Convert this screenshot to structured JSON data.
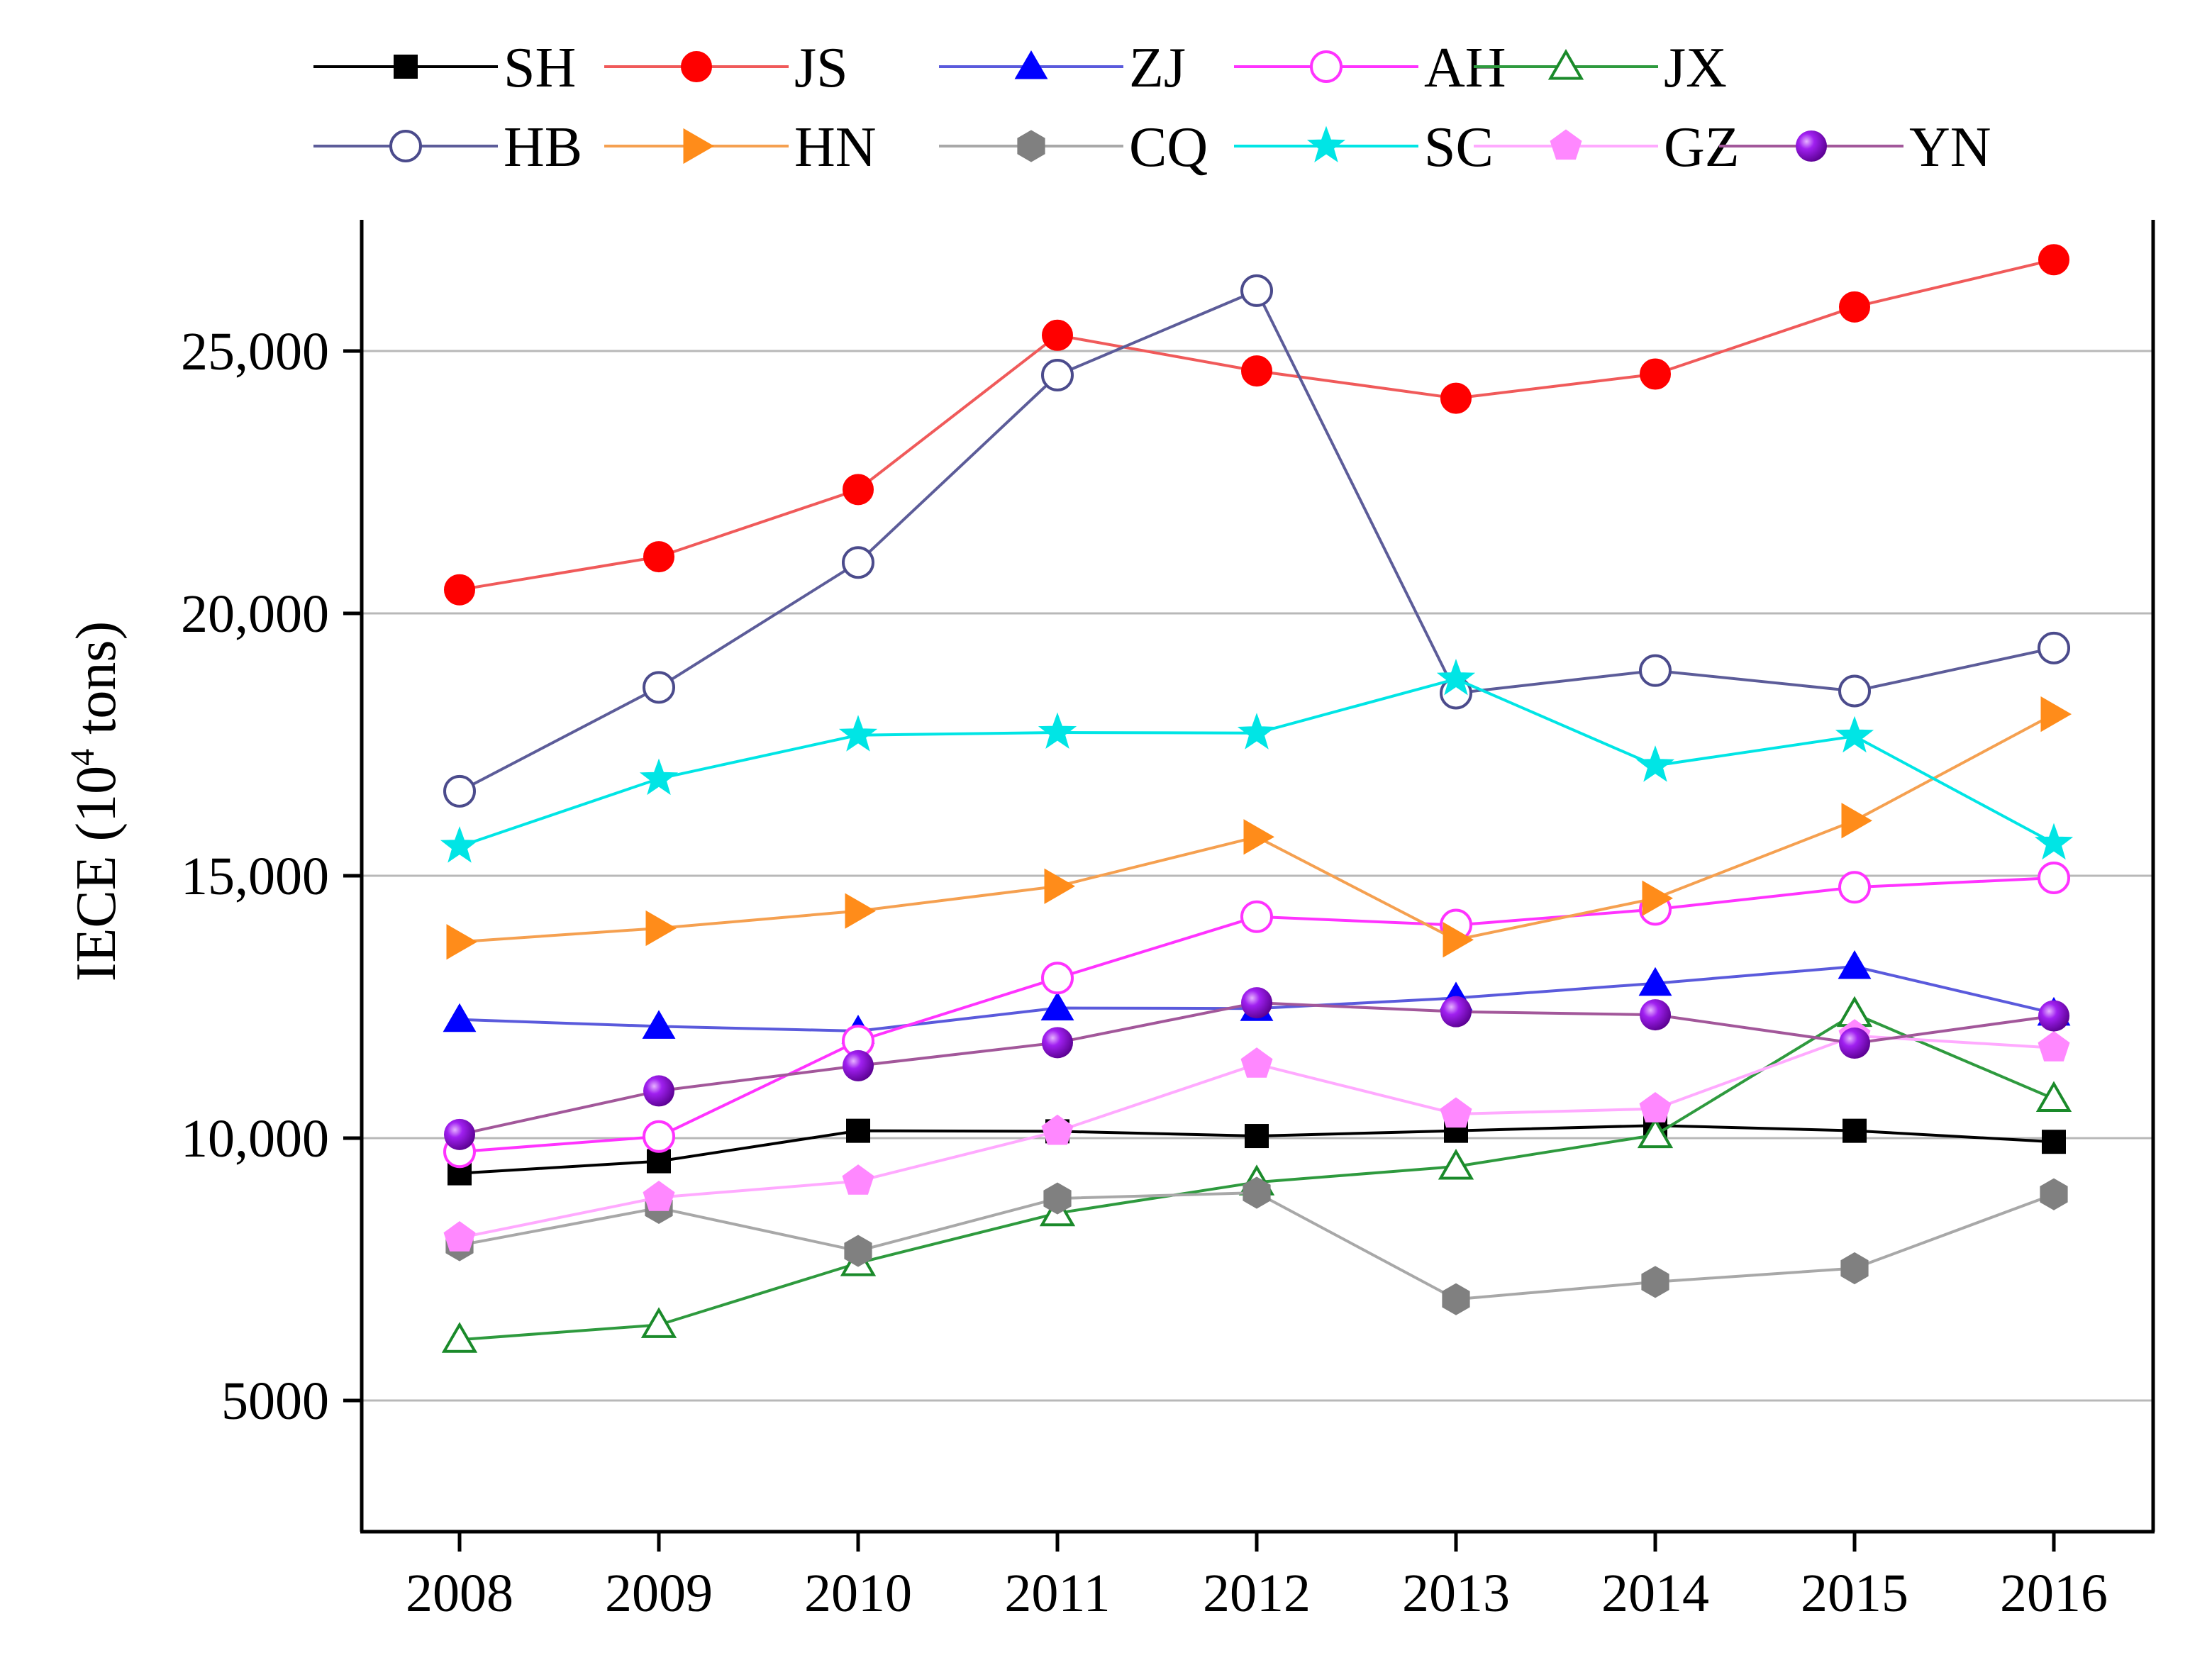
{
  "chart_data": {
    "type": "line",
    "title": "",
    "xlabel": "",
    "ylabel_parts": {
      "pre": "IECE (10",
      "sup": "4",
      "post": " tons)"
    },
    "x": [
      "2008",
      "2009",
      "2010",
      "2011",
      "2012",
      "2013",
      "2014",
      "2015",
      "2016"
    ],
    "ylim": [
      2500,
      27500
    ],
    "yticks": [
      5000,
      10000,
      15000,
      20000,
      25000
    ],
    "ytick_labels": [
      "5000",
      "10,000",
      "15,000",
      "20,000",
      "25,000"
    ],
    "grid": true,
    "legend_position": "top",
    "series": [
      {
        "name": "SH",
        "color": "#000000",
        "marker": "square",
        "filled": true,
        "values": [
          9330,
          9560,
          10140,
          10130,
          10040,
          10140,
          10240,
          10140,
          9930
        ]
      },
      {
        "name": "JS",
        "color": "#ff0000",
        "line_color": "#f05a5a",
        "marker": "circle",
        "filled": true,
        "values": [
          20450,
          21080,
          22360,
          25300,
          24620,
          24100,
          24560,
          25840,
          26740
        ]
      },
      {
        "name": "ZJ",
        "color": "#0000ff",
        "line_color": "#5a5adc",
        "marker": "triangle-up",
        "filled": true,
        "values": [
          12260,
          12130,
          12040,
          12480,
          12470,
          12670,
          12950,
          13270,
          12380
        ]
      },
      {
        "name": "AH",
        "color": "#ff33ff",
        "marker": "circle",
        "filled": false,
        "values": [
          9740,
          10030,
          11850,
          13050,
          14220,
          14060,
          14360,
          14780,
          14960
        ]
      },
      {
        "name": "JX",
        "color": "#1a8a2a",
        "line_color": "#2e9a3e",
        "marker": "triangle-up",
        "filled": false,
        "values": [
          6160,
          6440,
          7620,
          8570,
          9160,
          9460,
          10060,
          12370,
          10750
        ]
      },
      {
        "name": "HB",
        "color": "#4b4b8c",
        "line_color": "#5c5c99",
        "marker": "circle",
        "filled": false,
        "values": [
          16610,
          18590,
          20970,
          24540,
          26150,
          18480,
          18910,
          18520,
          19340
        ]
      },
      {
        "name": "HN",
        "color": "#ff8c1a",
        "line_color": "#f5a050",
        "marker": "triangle-right",
        "filled": true,
        "values": [
          13740,
          14000,
          14330,
          14800,
          15740,
          13780,
          14570,
          16050,
          18080
        ]
      },
      {
        "name": "CQ",
        "color": "#808080",
        "line_color": "#a8a8a8",
        "marker": "hexagon",
        "filled": true,
        "values": [
          7960,
          8670,
          7850,
          8850,
          8960,
          6930,
          7260,
          7520,
          8930
        ]
      },
      {
        "name": "SC",
        "color": "#00e5e5",
        "marker": "star",
        "filled": true,
        "values": [
          15560,
          16850,
          17680,
          17730,
          17720,
          18750,
          17100,
          17660,
          15620
        ]
      },
      {
        "name": "GZ",
        "color": "#ff88ff",
        "line_color": "#ffaaff",
        "marker": "pentagon",
        "filled": true,
        "values": [
          8100,
          8870,
          9180,
          10130,
          11410,
          10460,
          10560,
          11950,
          11720
        ]
      },
      {
        "name": "YN",
        "color": "#9900dd",
        "line_color": "#a2579a",
        "marker": "ball",
        "filled": true,
        "values": [
          10070,
          10900,
          11380,
          11820,
          12580,
          12410,
          12350,
          11810,
          12330
        ]
      }
    ]
  }
}
